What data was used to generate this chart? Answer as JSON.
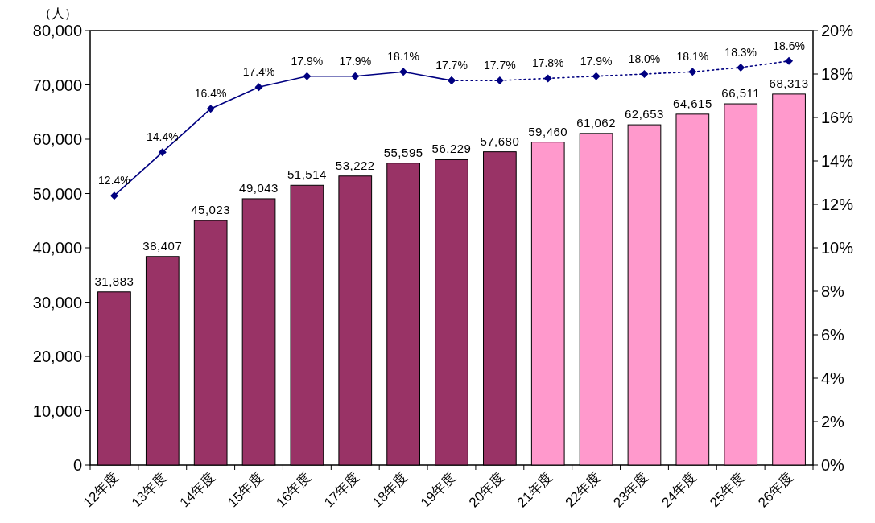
{
  "chart_data": {
    "type": "bar",
    "ylabel": "（人）",
    "categories": [
      "12年度",
      "13年度",
      "14年度",
      "15年度",
      "16年度",
      "17年度",
      "18年度",
      "19年度",
      "20年度",
      "21年度",
      "22年度",
      "23年度",
      "24年度",
      "25年度",
      "26年度"
    ],
    "series": [
      {
        "colors": [
          "#993366",
          "#993366",
          "#993366",
          "#993366",
          "#993366",
          "#993366",
          "#993366",
          "#993366",
          "#993366",
          "#ff99cc",
          "#ff99cc",
          "#ff99cc",
          "#ff99cc",
          "#ff99cc",
          "#ff99cc"
        ],
        "values": [
          31883,
          38407,
          45023,
          49043,
          51514,
          53222,
          55595,
          56229,
          57680,
          59460,
          61062,
          62653,
          64615,
          66511,
          68313
        ],
        "value_labels": [
          "31,883",
          "38,407",
          "45,023",
          "49,043",
          "51,514",
          "53,222",
          "55,595",
          "56,229",
          "57,680",
          "59,460",
          "61,062",
          "62,653",
          "64,615",
          "66,511",
          "68,313"
        ]
      },
      {
        "type": "line",
        "axis": "y2",
        "color": "#000080",
        "marker": "diamond",
        "line_style": "solid",
        "values": [
          12.4,
          14.4,
          16.4,
          17.4,
          17.9,
          17.9,
          18.1,
          17.7,
          null,
          null,
          null,
          null,
          null,
          null,
          null
        ],
        "value_labels": [
          "12.4%",
          "14.4%",
          "16.4%",
          "17.4%",
          "17.9%",
          "17.9%",
          "18.1%",
          "17.7%",
          null,
          null,
          null,
          null,
          null,
          null,
          null
        ]
      },
      {
        "type": "line",
        "axis": "y2",
        "color": "#000080",
        "marker": "diamond",
        "line_style": "dotted",
        "values": [
          null,
          null,
          null,
          null,
          null,
          null,
          null,
          17.7,
          17.7,
          17.8,
          17.9,
          18.0,
          18.1,
          18.3,
          18.6
        ],
        "value_labels": [
          null,
          null,
          null,
          null,
          null,
          null,
          null,
          null,
          "17.7%",
          "17.8%",
          "17.9%",
          "18.0%",
          "18.1%",
          "18.3%",
          "18.6%"
        ]
      }
    ],
    "ylim": [
      0,
      80000
    ],
    "yticks": [
      {
        "value": 0,
        "label": "0"
      },
      {
        "value": 10000,
        "label": "10,000"
      },
      {
        "value": 20000,
        "label": "20,000"
      },
      {
        "value": 30000,
        "label": "30,000"
      },
      {
        "value": 40000,
        "label": "40,000"
      },
      {
        "value": 50000,
        "label": "50,000"
      },
      {
        "value": 60000,
        "label": "60,000"
      },
      {
        "value": 70000,
        "label": "70,000"
      },
      {
        "value": 80000,
        "label": "80,000"
      }
    ],
    "y2lim": [
      0,
      20
    ],
    "y2ticks": [
      {
        "value": 0,
        "label": "0%"
      },
      {
        "value": 2,
        "label": "2%"
      },
      {
        "value": 4,
        "label": "4%"
      },
      {
        "value": 6,
        "label": "6%"
      },
      {
        "value": 8,
        "label": "8%"
      },
      {
        "value": 10,
        "label": "10%"
      },
      {
        "value": 12,
        "label": "12%"
      },
      {
        "value": 14,
        "label": "14%"
      },
      {
        "value": 16,
        "label": "16%"
      },
      {
        "value": 18,
        "label": "18%"
      },
      {
        "value": 20,
        "label": "20%"
      }
    ]
  }
}
